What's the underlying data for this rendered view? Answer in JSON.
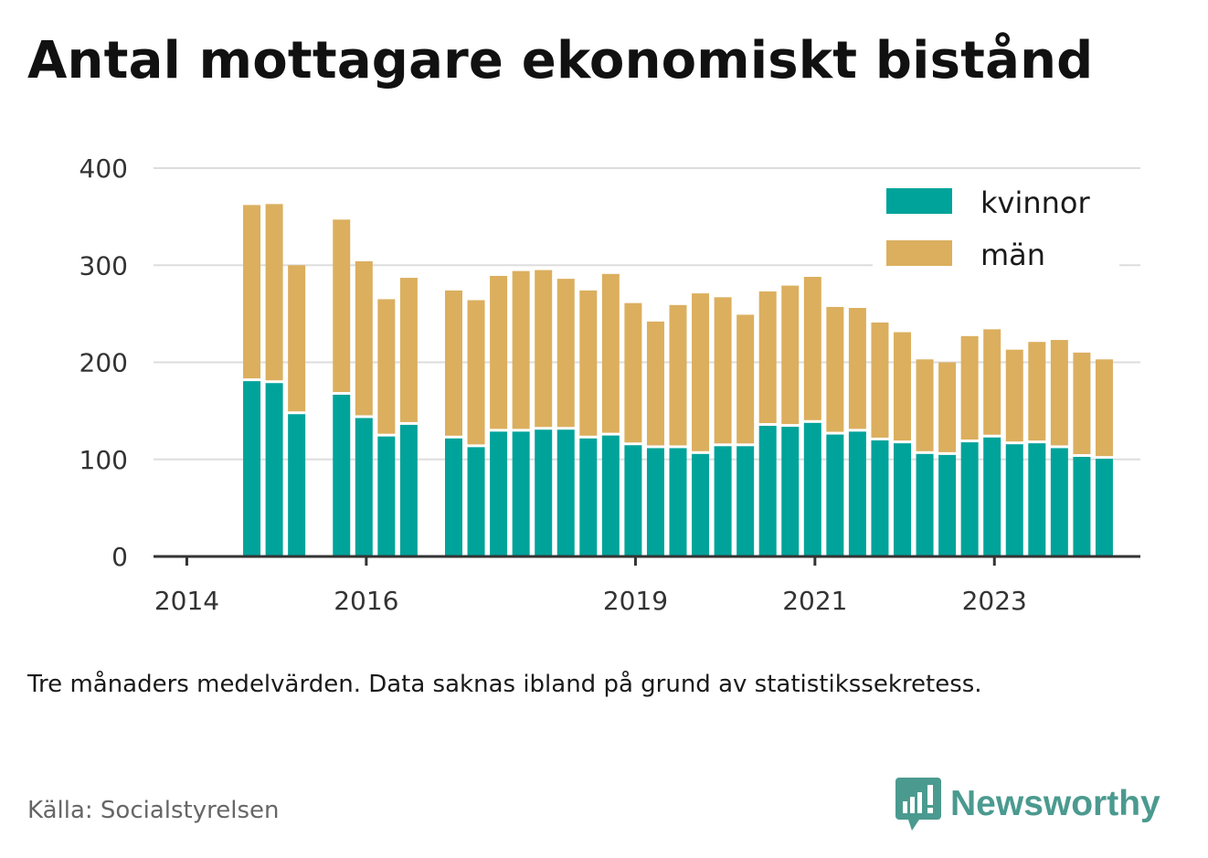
{
  "title": "Antal mottagare ekonomiskt bistånd",
  "note": "Tre månaders medelvärden. Data saknas ibland på grund av statistikssekretess.",
  "source": "Källa: Socialstyrelsen",
  "brand": "Newsworthy",
  "colors": {
    "kvinnor": "#00a39a",
    "man": "#dbaf5e",
    "grid": "#dddddd",
    "axis": "#333333"
  },
  "chart_data": {
    "type": "bar",
    "stacked": true,
    "ylim": [
      0,
      400
    ],
    "yticks": [
      0,
      100,
      200,
      300,
      400
    ],
    "xticks": [
      "2014",
      "2016",
      "2019",
      "2021",
      "2023"
    ],
    "legend": {
      "placement": "top-right",
      "entries": [
        "kvinnor",
        "män"
      ]
    },
    "grid": true,
    "categories": [
      "2014-03",
      "2014-06",
      "2014-09",
      "2014-12",
      "2015-03",
      "2015-06",
      "2015-09",
      "2015-12",
      "2016-03",
      "2016-06",
      "2016-09",
      "2016-12",
      "2017-03",
      "2017-06",
      "2017-09",
      "2017-12",
      "2018-03",
      "2018-06",
      "2018-09",
      "2018-12",
      "2019-03",
      "2019-06",
      "2019-09",
      "2019-12",
      "2020-03",
      "2020-06",
      "2020-09",
      "2020-12",
      "2021-03",
      "2021-06",
      "2021-09",
      "2021-12",
      "2022-03",
      "2022-06",
      "2022-09",
      "2022-12",
      "2023-03",
      "2023-06",
      "2023-09",
      "2023-12",
      "2024-03"
    ],
    "series": [
      {
        "name": "kvinnor",
        "values": [
          null,
          182,
          180,
          148,
          null,
          168,
          144,
          125,
          137,
          null,
          123,
          114,
          130,
          130,
          132,
          132,
          123,
          126,
          116,
          113,
          113,
          107,
          115,
          115,
          136,
          135,
          139,
          127,
          130,
          121,
          118,
          107,
          106,
          119,
          124,
          117,
          118,
          113,
          104,
          102,
          null
        ]
      },
      {
        "name": "män",
        "values": [
          null,
          180,
          183,
          152,
          null,
          179,
          160,
          140,
          150,
          null,
          151,
          150,
          159,
          164,
          163,
          154,
          151,
          165,
          145,
          129,
          146,
          164,
          152,
          134,
          137,
          144,
          149,
          130,
          126,
          120,
          113,
          96,
          94,
          108,
          110,
          96,
          103,
          110,
          106,
          101,
          null
        ]
      }
    ]
  }
}
